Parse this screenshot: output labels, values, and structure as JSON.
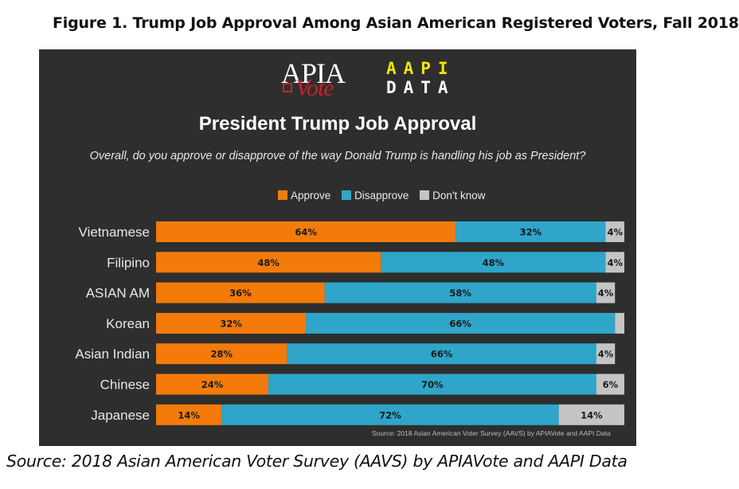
{
  "figure_title": "Figure 1.  Trump Job Approval Among Asian American Registered Voters, Fall 2018",
  "logos": {
    "apia_text": "APIA",
    "vote_text": "Vote",
    "aapi_line1": "AAPI",
    "aapi_line2": "DATA"
  },
  "bottom_source": "Source: 2018 Asian American Voter Survey (AAVS) by APIAVote and AAPI Data",
  "chart_data": {
    "type": "bar",
    "orientation": "horizontal",
    "stacked": true,
    "percent": true,
    "title": "President Trump Job Approval",
    "subtitle": "Overall, do you approve or disapprove of the way Donald Trump is handling his job as President?",
    "categories": [
      "Vietnamese",
      "Filipino",
      "ASIAN AM",
      "Korean",
      "Asian Indian",
      "Chinese",
      "Japanese"
    ],
    "series": [
      {
        "name": "Approve",
        "color": "#f47b0a",
        "values": [
          64,
          48,
          36,
          32,
          28,
          24,
          14
        ]
      },
      {
        "name": "Disapprove",
        "color": "#2ea5c9",
        "values": [
          32,
          48,
          58,
          66,
          66,
          70,
          72
        ]
      },
      {
        "name": "Don't know",
        "color": "#c4c4c4",
        "values": [
          4,
          4,
          4,
          2,
          4,
          6,
          14
        ]
      }
    ],
    "data_labels": [
      [
        "64%",
        "32%",
        "4%"
      ],
      [
        "48%",
        "48%",
        "4%"
      ],
      [
        "36%",
        "58%",
        "4%"
      ],
      [
        "32%",
        "66%",
        ""
      ],
      [
        "28%",
        "66%",
        "4%"
      ],
      [
        "24%",
        "70%",
        "6%"
      ],
      [
        "14%",
        "72%",
        "14%"
      ]
    ],
    "xlim": [
      0,
      100
    ],
    "legend": "top-center",
    "grid": false,
    "source_note": "Source: 2018 Asian American Voter Survey (AAVS) by APIAVote and AAPI Data"
  }
}
